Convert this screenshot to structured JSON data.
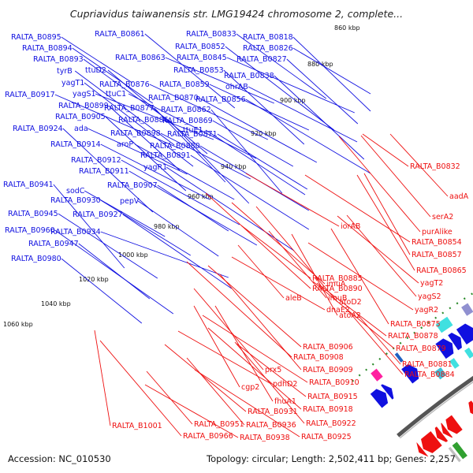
{
  "title": "Cupriavidus taiwanensis str. LMG19424 chromosome 2, complete...",
  "footer": {
    "accession": "Accession: NC_010530",
    "summary": "Topology: circular; Length: 2,502,411 bp; Genes: 2,257"
  },
  "colors": {
    "forward": "#1010e0",
    "reverse": "#ee1010",
    "backbone": "#555555",
    "scale_dots": "#2a8a2a"
  },
  "ticks": [
    "860 kbp",
    "880 kbp",
    "900 kbp",
    "920 kbp",
    "940 kbp",
    "960 kbp",
    "980 kbp",
    "1000 kbp",
    "1020 kbp",
    "1040 kbp",
    "1060 kbp"
  ],
  "labels_forward": [
    "RALTA_B0895",
    "RALTA_B0894",
    "RALTA_B0893",
    "tyrB",
    "yagT1",
    "yagS1",
    "RALTA_B0917",
    "RALTA_B0899",
    "RALTA_B0905",
    "RALTA_B0924",
    "ada",
    "RALTA_B0914",
    "RALTA_B0912",
    "RALTA_B0911",
    "RALTA_B0941",
    "sodC",
    "RALTA_B0930",
    "RALTA_B0945",
    "RALTA_B0927",
    "RALTA_B0960",
    "RALTA_B0934",
    "RALTA_B0947",
    "RALTA_B0980",
    "RALTA_B0861",
    "ttuD2",
    "RALTA_B0863",
    "RALTA_B0876",
    "ttuC1",
    "RALTA_B0877",
    "RALTA_B0886",
    "RALTA_B0898",
    "aroP",
    "RALTA_B0880",
    "RALTA_B0891",
    "yagR1",
    "RALTA_B0907",
    "pepV",
    "RALTA_B0833",
    "RALTA_B0818",
    "RALTA_B0852",
    "RALTA_B0826",
    "RALTA_B0845",
    "RALTA_B0827",
    "RALTA_B0853",
    "RALTA_B0838",
    "RALTA_B0859",
    "ohrAB",
    "RALTA_B0870",
    "RALTA_B0856",
    "RALTA_B0862",
    "RALTA_B0869",
    "RALTA_B0871",
    "ttuE1"
  ],
  "labels_reverse": [
    "RALTA_B0832",
    "aadA",
    "serA2",
    "purAlike",
    "iorAB",
    "RALTA_B0854",
    "RALTA_B0857",
    "RALTA_B0865",
    "RALTA_B0885",
    "yagT2",
    "imuA",
    "RALTA_B0890",
    "aleB",
    "imuB",
    "yagS2",
    "atoD2",
    "dnaE2",
    "yagR2",
    "atoA2",
    "RALTA_B0875",
    "RALTA_B0878",
    "RALTA_B0879",
    "RALTA_B0906",
    "RALTA_B0908",
    "RALTA_B0881",
    "RALTA_B0884",
    "prx5",
    "RALTA_B0909",
    "pdhD2",
    "RALTA_B0910",
    "cgp2",
    "fhuA1",
    "RALTA_B0915",
    "RALTA_B0931",
    "RALTA_B0918",
    "RALTA_B1001",
    "RALTA_B0951",
    "RALTA_B0936",
    "RALTA_B0922",
    "RALTA_B0966",
    "RALTA_B0938",
    "RALTA_B0925"
  ]
}
